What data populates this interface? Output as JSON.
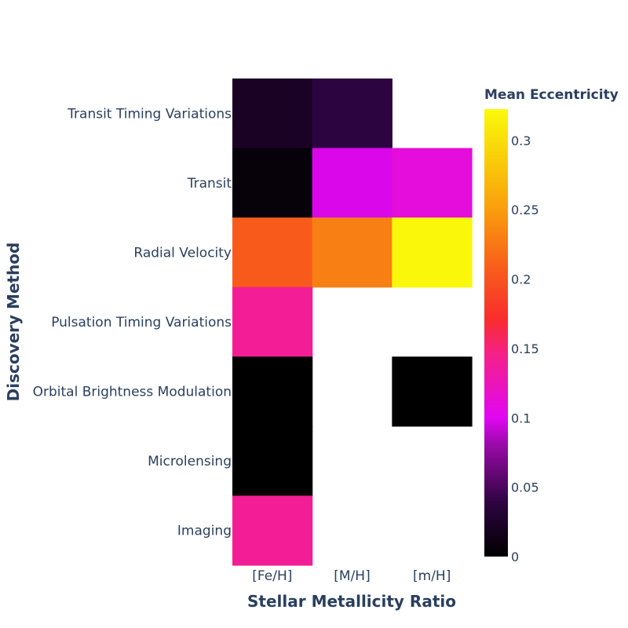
{
  "chart_data": {
    "type": "heatmap",
    "xlabel": "Stellar Metallicity Ratio",
    "ylabel": "Discovery Method",
    "x": [
      "[Fe/H]",
      "[M/H]",
      "[m/H]"
    ],
    "y": [
      "Transit Timing Variations",
      "Transit",
      "Radial Velocity",
      "Pulsation Timing Variations",
      "Orbital Brightness Modulation",
      "Microlensing",
      "Imaging"
    ],
    "z": [
      [
        0.022,
        0.038,
        null
      ],
      [
        0.006,
        0.098,
        0.11
      ],
      [
        0.205,
        0.23,
        0.32
      ],
      [
        0.14,
        null,
        null
      ],
      [
        0.0,
        null,
        0.0
      ],
      [
        0.0,
        null,
        null
      ],
      [
        0.14,
        null,
        null
      ]
    ],
    "colorscale": [
      "#000004",
      "#1f0c48",
      "#550f6d",
      "#88226a",
      "#a83655",
      "#e303f0",
      "#f72d2d",
      "#f9281c",
      "#f98d0a",
      "#f9c932",
      "#fbfa0a"
    ],
    "colorbar": {
      "title": "Mean Eccentricity",
      "range": [
        0,
        0.3225
      ],
      "ticks": [
        0,
        0.05,
        0.1,
        0.15,
        0.2,
        0.25,
        0.3
      ],
      "tick_labels": [
        "0",
        "0.05",
        "0.1",
        "0.15",
        "0.2",
        "0.25",
        "0.3"
      ]
    }
  }
}
